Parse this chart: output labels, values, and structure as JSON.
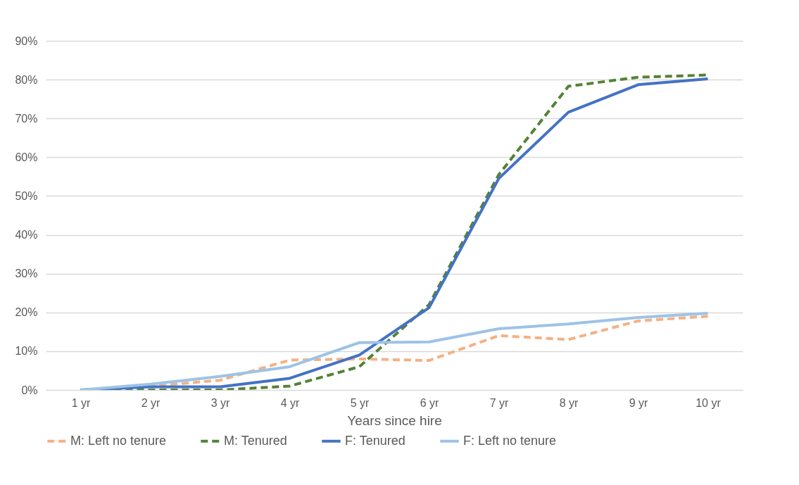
{
  "chart_data": {
    "type": "line",
    "xlabel": "Years since hire",
    "categories": [
      "1 yr",
      "2 yr",
      "3 yr",
      "4 yr",
      "5 yr",
      "6 yr",
      "7 yr",
      "8 yr",
      "9 yr",
      "10 yr"
    ],
    "series": [
      {
        "name": "M: Left no tenure",
        "color": "#f4b183",
        "line_style": "dashed",
        "values": [
          0,
          1,
          2.5,
          7.7,
          8,
          7.6,
          14,
          13,
          17.8,
          19
        ]
      },
      {
        "name": "M: Tenured",
        "color": "#548235",
        "line_style": "dashed",
        "values": [
          0,
          0,
          0,
          1,
          6,
          22,
          55.5,
          78.3,
          80.6,
          81.2
        ]
      },
      {
        "name": "F: Tenured",
        "color": "#4472c4",
        "line_style": "solid",
        "values": [
          0,
          0.8,
          0.8,
          3,
          9,
          21.2,
          54.5,
          71.6,
          78.7,
          80.2
        ]
      },
      {
        "name": "F: Left no tenure",
        "color": "#9dc3e6",
        "line_style": "solid",
        "values": [
          0,
          1.5,
          3.5,
          6,
          12.2,
          12.4,
          15.8,
          17,
          18.7,
          19.8
        ]
      }
    ],
    "ylim": [
      0,
      90
    ],
    "yticks": [
      {
        "value": 0,
        "label": "0%"
      },
      {
        "value": 10,
        "label": "10%"
      },
      {
        "value": 20,
        "label": "20%"
      },
      {
        "value": 30,
        "label": "30%"
      },
      {
        "value": 40,
        "label": "40%"
      },
      {
        "value": 50,
        "label": "50%"
      },
      {
        "value": 60,
        "label": "60%"
      },
      {
        "value": 70,
        "label": "70%"
      },
      {
        "value": 80,
        "label": "80%"
      },
      {
        "value": 90,
        "label": "90%"
      }
    ],
    "grid": "y",
    "legend": "bottom",
    "marker": "none"
  }
}
